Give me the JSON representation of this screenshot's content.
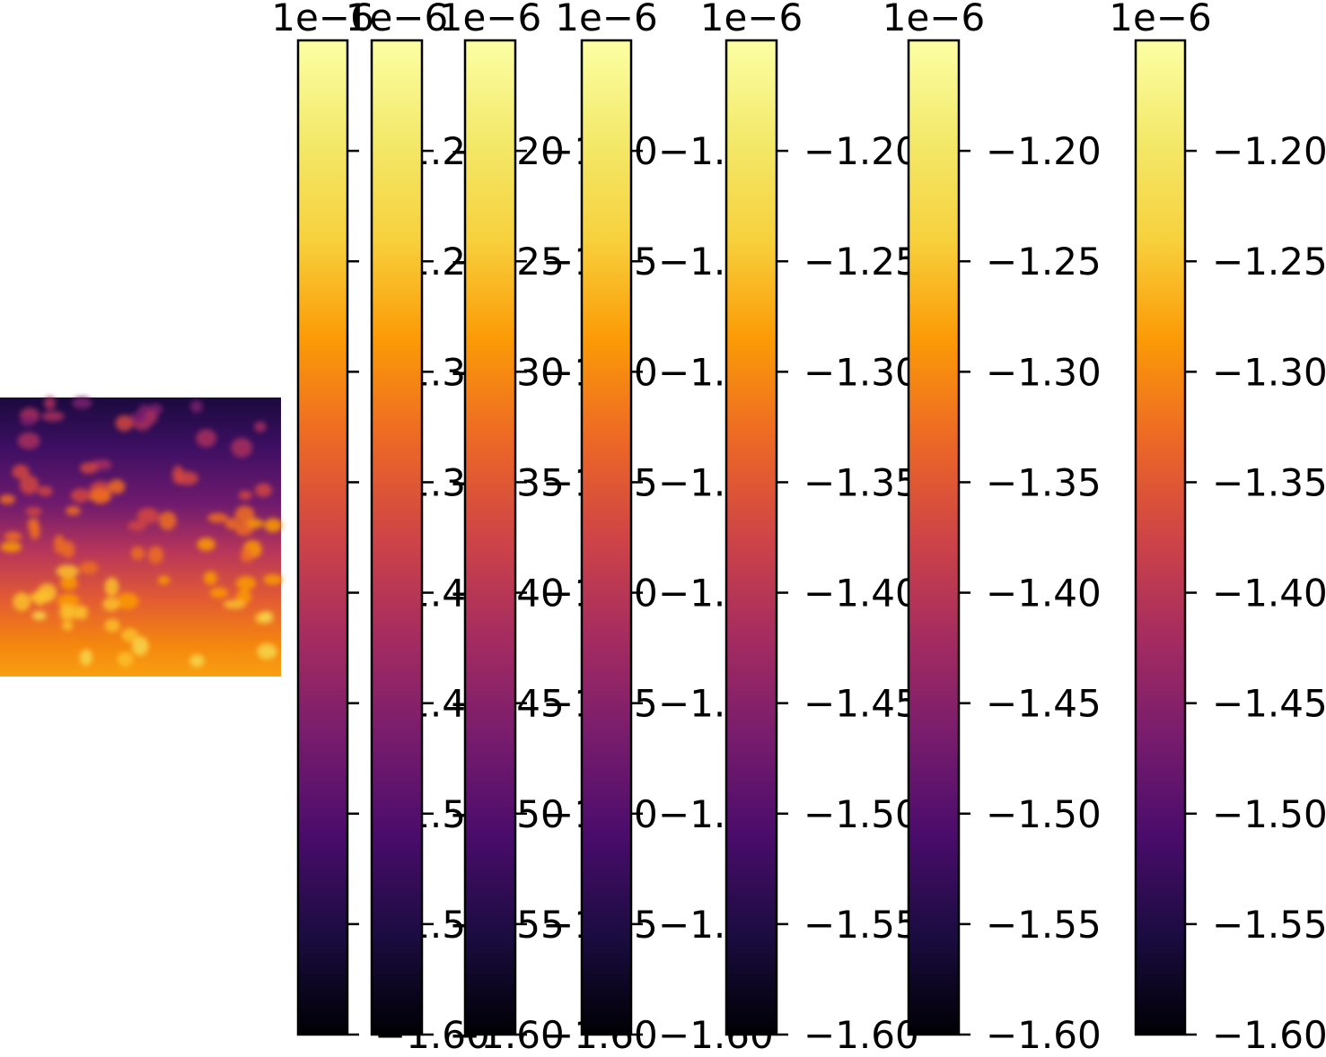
{
  "chart_data": {
    "type": "heatmap",
    "colormap": "inferno",
    "image": {
      "description_free": true,
      "value_range": [
        -1.6e-06,
        -1.15e-06
      ]
    },
    "colorbars": [
      {
        "id": 1,
        "multiplier_label": "1e−6",
        "vmin": -1.6,
        "vmax": -1.15
      },
      {
        "id": 2,
        "multiplier_label": "1e−6",
        "vmin": -1.6,
        "vmax": -1.15
      },
      {
        "id": 3,
        "multiplier_label": "1e−6",
        "vmin": -1.6,
        "vmax": -1.15
      },
      {
        "id": 4,
        "multiplier_label": "1e−6",
        "vmin": -1.6,
        "vmax": -1.15
      },
      {
        "id": 5,
        "multiplier_label": "1e−6",
        "vmin": -1.6,
        "vmax": -1.15
      },
      {
        "id": 6,
        "multiplier_label": "1e−6",
        "vmin": -1.6,
        "vmax": -1.15
      },
      {
        "id": 7,
        "multiplier_label": "1e−6",
        "vmin": -1.6,
        "vmax": -1.15
      }
    ],
    "ticks": [
      -1.2,
      -1.25,
      -1.3,
      -1.35,
      -1.4,
      -1.45,
      -1.5,
      -1.55,
      -1.6
    ],
    "tick_labels": [
      "−1.20",
      "−1.25",
      "−1.30",
      "−1.35",
      "−1.40",
      "−1.45",
      "−1.50",
      "−1.55",
      "−1.60"
    ]
  }
}
